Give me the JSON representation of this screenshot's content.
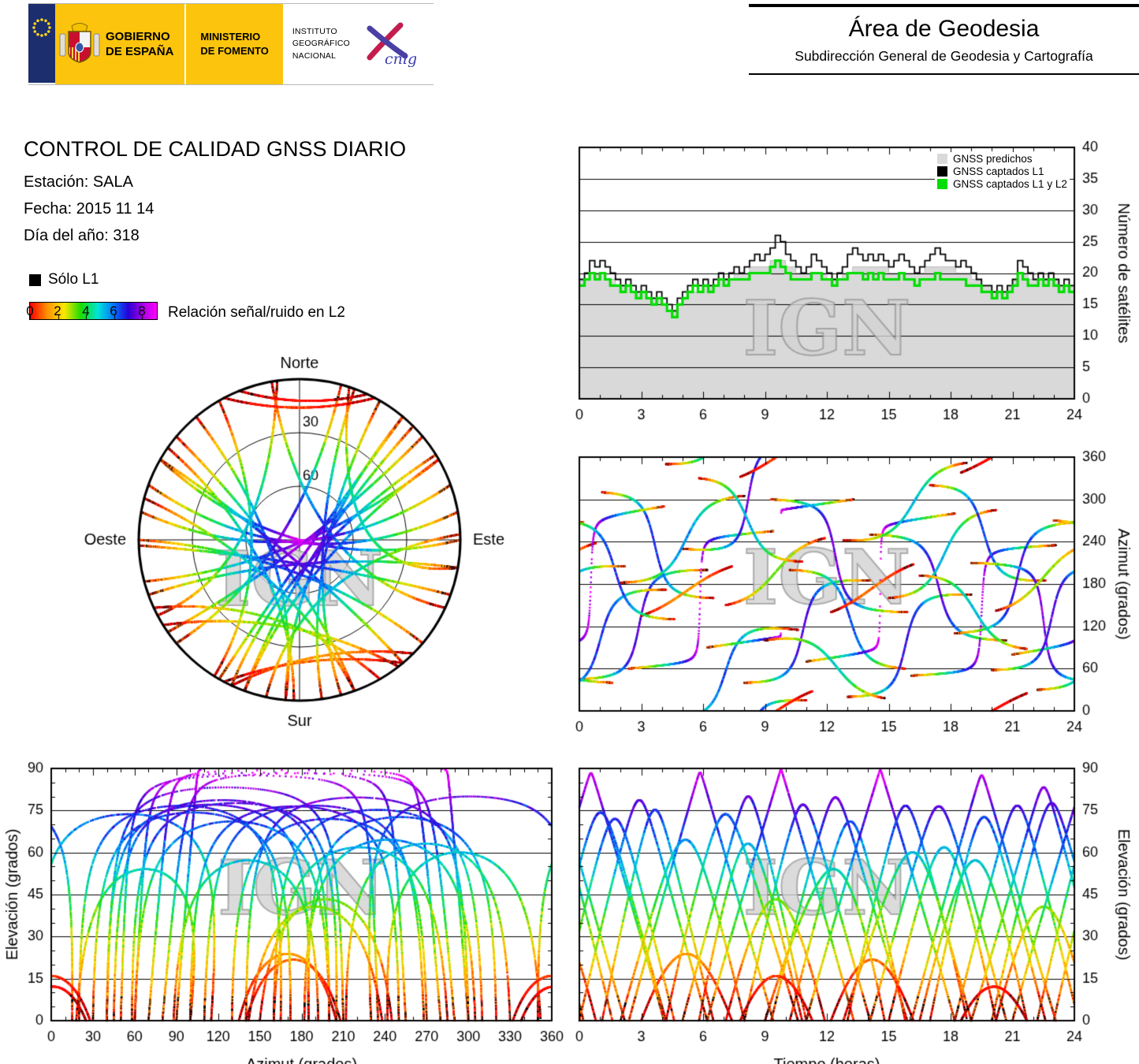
{
  "header": {
    "gobierno_line1": "GOBIERNO",
    "gobierno_line2": "DE ESPAÑA",
    "ministerio_line1": "MINISTERIO",
    "ministerio_line2": "DE FOMENTO",
    "ign_line1": "INSTITUTO",
    "ign_line2": "GEOGRÁFICO",
    "ign_line3": "NACIONAL",
    "cnig_label": "cnig",
    "area_title": "Área de Geodesia",
    "area_subtitle": "Subdirección General de Geodesia y Cartografía"
  },
  "report": {
    "title": "CONTROL DE CALIDAD GNSS DIARIO",
    "station": "Estación: SALA",
    "date": "Fecha: 2015 11 14",
    "day_of_year": "Día del año: 318"
  },
  "legend": {
    "solo_l1": "Sólo L1",
    "solo_l1_color": "#000000",
    "snr_label": "Relación señal/ruido en L2",
    "snr_ticks": [
      "0",
      "2",
      "4",
      "6",
      "8"
    ],
    "snr_range": [
      0,
      9
    ],
    "colormap": [
      [
        0,
        "#ff0000"
      ],
      [
        1.2,
        "#ff9100"
      ],
      [
        2.4,
        "#ffe900"
      ],
      [
        3.6,
        "#1ddc00"
      ],
      [
        4.8,
        "#00e5d8"
      ],
      [
        6.0,
        "#0070ff"
      ],
      [
        7.0,
        "#2a00d5"
      ],
      [
        8.0,
        "#a400e6"
      ],
      [
        9.0,
        "#ff00ff"
      ]
    ]
  },
  "watermark": "IGN",
  "chart_data": [
    {
      "id": "nsat",
      "type": "area+step",
      "ylabel": "Número de satélites",
      "x_range": [
        0,
        24
      ],
      "y_range": [
        0,
        40
      ],
      "x_ticks": [
        0,
        3,
        6,
        9,
        12,
        15,
        18,
        21,
        24
      ],
      "y_ticks": [
        0,
        5,
        10,
        15,
        20,
        25,
        30,
        35,
        40
      ],
      "x_minor_step": 1,
      "step_hours": 0.25,
      "legend": [
        {
          "label": "GNSS predichos",
          "color": "#d9d9d9"
        },
        {
          "label": "GNSS captados L1",
          "color": "#000000"
        },
        {
          "label": "GNSS captados L1 y L2",
          "color": "#00dd00"
        }
      ],
      "series": {
        "predichos": [
          19,
          19,
          20,
          20,
          20,
          19,
          19,
          18,
          18,
          18,
          17,
          17,
          17,
          16,
          16,
          16,
          15,
          14,
          14,
          15,
          16,
          17,
          17,
          17,
          18,
          18,
          18,
          19,
          19,
          19,
          20,
          20,
          20,
          21,
          21,
          21,
          21,
          22,
          22,
          22,
          21,
          21,
          20,
          20,
          20,
          20,
          20,
          20,
          19,
          19,
          19,
          20,
          20,
          21,
          21,
          21,
          21,
          21,
          21,
          21,
          20,
          20,
          20,
          20,
          20,
          20,
          20,
          21,
          21,
          21,
          21,
          21,
          21,
          20,
          20,
          20,
          19,
          19,
          18,
          18,
          17,
          17,
          17,
          18,
          19,
          20,
          20,
          19,
          19,
          19,
          19,
          19,
          19,
          18,
          18,
          18
        ],
        "captados_l1": [
          19,
          20,
          22,
          21,
          22,
          21,
          20,
          19,
          18,
          19,
          18,
          17,
          18,
          17,
          16,
          17,
          16,
          15,
          14,
          16,
          17,
          18,
          19,
          18,
          19,
          18,
          19,
          20,
          19,
          20,
          21,
          20,
          21,
          22,
          23,
          22,
          23,
          24,
          26,
          25,
          23,
          22,
          21,
          20,
          21,
          23,
          22,
          21,
          20,
          19,
          20,
          21,
          23,
          24,
          23,
          22,
          23,
          22,
          23,
          22,
          21,
          22,
          23,
          22,
          21,
          20,
          21,
          22,
          23,
          24,
          23,
          22,
          22,
          21,
          22,
          21,
          20,
          19,
          18,
          18,
          17,
          18,
          17,
          18,
          19,
          22,
          21,
          20,
          19,
          20,
          19,
          20,
          19,
          18,
          19,
          18
        ],
        "captados_l1_l2": [
          18,
          19,
          20,
          19,
          20,
          19,
          18,
          18,
          17,
          18,
          17,
          16,
          17,
          16,
          15,
          16,
          15,
          14,
          13,
          15,
          16,
          17,
          18,
          17,
          18,
          17,
          18,
          19,
          18,
          19,
          19,
          19,
          19,
          20,
          20,
          20,
          20,
          21,
          22,
          21,
          20,
          19,
          19,
          19,
          19,
          20,
          20,
          19,
          19,
          18,
          19,
          19,
          20,
          20,
          20,
          19,
          20,
          19,
          20,
          19,
          19,
          19,
          20,
          19,
          19,
          18,
          19,
          19,
          19,
          20,
          19,
          19,
          19,
          19,
          19,
          18,
          18,
          18,
          17,
          17,
          16,
          17,
          16,
          17,
          18,
          20,
          19,
          18,
          18,
          19,
          18,
          19,
          18,
          17,
          18,
          17
        ]
      }
    },
    {
      "id": "sky",
      "type": "skyplot",
      "source": "satellite_passes",
      "labels": {
        "north": "Norte",
        "south": "Sur",
        "east": "Este",
        "west": "Oeste"
      },
      "elevation_rings": [
        30,
        60
      ],
      "ring_labels": [
        "30",
        "60"
      ]
    },
    {
      "id": "az_time",
      "type": "scatter",
      "source": "satellite_passes",
      "ylabel": "Azimut (grados)",
      "x_range": [
        0,
        24
      ],
      "y_range": [
        0,
        360
      ],
      "x_ticks": [
        0,
        3,
        6,
        9,
        12,
        15,
        18,
        21,
        24
      ],
      "y_ticks": [
        0,
        60,
        120,
        180,
        240,
        300,
        360
      ],
      "x_minor_step": 1
    },
    {
      "id": "el_az",
      "type": "scatter",
      "source": "satellite_passes",
      "xlabel": "Azimut (grados)",
      "ylabel": "Elevación (grados)",
      "ylabel_side": "left",
      "x_range": [
        0,
        360
      ],
      "y_range": [
        0,
        90
      ],
      "x_ticks": [
        0,
        30,
        60,
        90,
        120,
        150,
        180,
        210,
        240,
        270,
        300,
        330,
        360
      ],
      "y_ticks": [
        0,
        15,
        30,
        45,
        60,
        75,
        90
      ],
      "x_minor_step": 10,
      "y_minor_step": 5
    },
    {
      "id": "el_time",
      "type": "scatter",
      "source": "satellite_passes",
      "xlabel": "Tiempo (horas)",
      "ylabel": "Elevación (grados)",
      "ylabel_side": "right",
      "x_range": [
        0,
        24
      ],
      "y_range": [
        0,
        90
      ],
      "x_ticks": [
        0,
        3,
        6,
        9,
        12,
        15,
        18,
        21,
        24
      ],
      "y_ticks": [
        0,
        15,
        30,
        45,
        60,
        75,
        90
      ],
      "x_minor_step": 1,
      "y_minor_step": 5
    }
  ],
  "satellite_passes": [
    {
      "t0": 0.0,
      "dur": 6.2,
      "az1": 45,
      "az2": 200,
      "b": 0.6,
      "co": 0.2
    },
    {
      "t0": 1.1,
      "dur": 5.4,
      "az1": 310,
      "az2": 160,
      "b": 0.5,
      "co": -0.3
    },
    {
      "t0": 2.4,
      "dur": 7.0,
      "az1": 60,
      "az2": 255,
      "b": 0.88,
      "co": 0.3,
      "tz": 0.04
    },
    {
      "t0": 3.0,
      "dur": 4.4,
      "az1": 135,
      "az2": 205,
      "b": 0.12,
      "co": -0.8
    },
    {
      "t0": 4.2,
      "dur": 6.4,
      "az1": 350,
      "az2": 115,
      "b": 0.45,
      "co": -0.5
    },
    {
      "t0": 5.0,
      "dur": 6.0,
      "az1": 230,
      "az2": 15,
      "b": 0.5,
      "co": 0.0
    },
    {
      "t0": 6.2,
      "dur": 7.1,
      "az1": 90,
      "az2": 300,
      "b": 0.9,
      "co": 0.4,
      "tz": 0.03
    },
    {
      "t0": 7.1,
      "dur": 4.8,
      "az1": 150,
      "az2": 245,
      "b": 0.28,
      "co": -0.6
    },
    {
      "t0": 8.0,
      "dur": 6.1,
      "az1": 40,
      "az2": 185,
      "b": 0.62,
      "co": 0.1
    },
    {
      "t0": 9.3,
      "dur": 6.6,
      "az1": 300,
      "az2": 140,
      "b": 0.72,
      "co": 0.3
    },
    {
      "t0": 10.2,
      "dur": 5.6,
      "az1": 200,
      "az2": 60,
      "b": 0.5,
      "co": -0.2
    },
    {
      "t0": 11.0,
      "dur": 7.2,
      "az1": 70,
      "az2": 280,
      "b": 0.92,
      "co": 0.5,
      "tz": 0.03
    },
    {
      "t0": 12.2,
      "dur": 4.0,
      "az1": 140,
      "az2": 208,
      "b": 0.1,
      "co": -1.0
    },
    {
      "t0": 13.0,
      "dur": 6.0,
      "az1": 20,
      "az2": 165,
      "b": 0.52,
      "co": 0.0
    },
    {
      "t0": 14.1,
      "dur": 6.6,
      "az1": 250,
      "az2": 100,
      "b": 0.78,
      "co": 0.35
    },
    {
      "t0": 15.0,
      "dur": 5.2,
      "az1": 160,
      "az2": 285,
      "b": 0.4,
      "co": -0.4
    },
    {
      "t0": 16.1,
      "dur": 7.0,
      "az1": 50,
      "az2": 235,
      "b": 0.86,
      "co": 0.3,
      "tz": 0.05
    },
    {
      "t0": 17.0,
      "dur": 5.6,
      "az1": 320,
      "az2": 185,
      "b": 0.55,
      "co": -0.1
    },
    {
      "t0": 18.2,
      "dur": 6.0,
      "az1": 110,
      "az2": 268,
      "b": 0.6,
      "co": 0.15
    },
    {
      "t0": 19.0,
      "dur": 6.6,
      "az1": 210,
      "az2": 40,
      "b": 0.66,
      "co": 0.2
    },
    {
      "t0": 20.2,
      "dur": 4.6,
      "az1": 142,
      "az2": 238,
      "b": 0.22,
      "co": -0.7
    },
    {
      "t0": 21.0,
      "dur": 7.1,
      "az1": 80,
      "az2": 290,
      "b": 0.93,
      "co": 0.45,
      "tz": 0.04
    },
    {
      "t0": 22.2,
      "dur": 6.0,
      "az1": 30,
      "az2": 172,
      "b": 0.5,
      "co": 0.0
    },
    {
      "t0": 23.0,
      "dur": 5.6,
      "az1": 270,
      "az2": 130,
      "b": 0.62,
      "co": 0.1
    },
    {
      "t0": 2.0,
      "dur": 6.0,
      "az1": 182,
      "az2": 305,
      "b": 0.46,
      "co": -0.3
    },
    {
      "t0": 5.8,
      "dur": 5.0,
      "az1": 330,
      "az2": 212,
      "b": 0.42,
      "co": -0.5
    },
    {
      "t0": 9.0,
      "dur": 5.8,
      "az1": 100,
      "az2": 18,
      "b": 0.36,
      "co": -0.2
    },
    {
      "t0": 12.8,
      "dur": 6.0,
      "az1": 242,
      "az2": 352,
      "b": 0.32,
      "co": -0.4
    },
    {
      "t0": 16.5,
      "dur": 5.2,
      "az1": 192,
      "az2": 88,
      "b": 0.48,
      "co": -0.15
    },
    {
      "t0": 20.0,
      "dur": 6.2,
      "az1": 58,
      "az2": 205,
      "b": 0.72,
      "co": 0.25
    },
    {
      "t0": 7.8,
      "dur": 3.5,
      "az1": 332,
      "az2": 28,
      "b": 0.06,
      "co": -1.2
    },
    {
      "t0": 18.5,
      "dur": 3.2,
      "az1": 338,
      "az2": 25,
      "b": 0.05,
      "co": -1.3
    }
  ]
}
